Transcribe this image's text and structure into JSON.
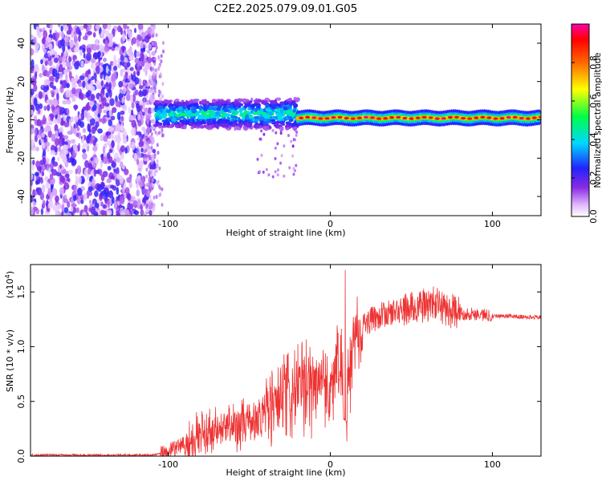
{
  "title": "C2E2.2025.079.09.01.G05",
  "chart_data": [
    {
      "type": "heatmap",
      "title": "C2E2.2025.079.09.01.G05",
      "xlabel": "Height of straight line (km)",
      "ylabel": "Frequency (Hz)",
      "xlim": [
        -185,
        130
      ],
      "ylim": [
        -50,
        50
      ],
      "x_ticks": [
        -100,
        0,
        100
      ],
      "y_ticks": [
        -40,
        -20,
        0,
        20,
        40
      ],
      "x_tick_labels": [
        "-100",
        "0",
        "100"
      ],
      "y_tick_labels": [
        "-40",
        "-20",
        "0",
        "20",
        "40"
      ],
      "colorbar": {
        "label": "Normalized spectral amplitude",
        "range": [
          0,
          1
        ],
        "ticks": [
          0.0,
          0.2,
          0.4,
          0.6,
          0.8
        ],
        "tick_labels": [
          "0.0",
          "0.2",
          "0.4",
          "0.6",
          "0.8"
        ]
      },
      "regions": [
        {
          "x_range": [
            -185,
            -108
          ],
          "freq_range": [
            -50,
            50
          ],
          "amplitude": "low (0.05-0.25), scattered noise"
        },
        {
          "x_range": [
            -108,
            -20
          ],
          "freq_range": [
            -5,
            10
          ],
          "amplitude": "moderate (0.2-0.45), broadened signal"
        },
        {
          "x_range": [
            -20,
            130
          ],
          "freq_center": 1,
          "freq_range": [
            -2,
            4
          ],
          "amplitude": "high (0.8-1.0), narrow tone"
        }
      ]
    },
    {
      "type": "line",
      "xlabel": "Height of straight line (km)",
      "ylabel": "SNR (10 * v/v)",
      "y_multiplier": "(x10",
      "y_multiplier_exp": "4",
      "y_multiplier_close": ")",
      "xlim": [
        -185,
        130
      ],
      "ylim": [
        0,
        1.75
      ],
      "x_ticks": [
        -100,
        0,
        100
      ],
      "y_ticks": [
        0.0,
        0.5,
        1.0,
        1.5
      ],
      "x_tick_labels": [
        "-100",
        "0",
        "100"
      ],
      "y_tick_labels": [
        "0.0",
        "0.5",
        "1.0",
        "1.5"
      ],
      "color": "#ee3333",
      "series": [
        {
          "name": "SNR",
          "x": [
            -185,
            -160,
            -130,
            -110,
            -100,
            -90,
            -80,
            -70,
            -60,
            -50,
            -40,
            -30,
            -20,
            -10,
            -5,
            0,
            5,
            10,
            15,
            20,
            30,
            40,
            50,
            60,
            65,
            70,
            80,
            90,
            100,
            110,
            120,
            130
          ],
          "y": [
            0.01,
            0.01,
            0.01,
            0.01,
            0.03,
            0.12,
            0.2,
            0.22,
            0.28,
            0.3,
            0.4,
            0.5,
            0.6,
            0.65,
            0.75,
            0.55,
            0.95,
            0.55,
            1.1,
            1.2,
            1.28,
            1.32,
            1.35,
            1.38,
            1.4,
            1.35,
            1.3,
            1.3,
            1.28,
            1.28,
            1.27,
            1.27
          ]
        }
      ]
    }
  ]
}
